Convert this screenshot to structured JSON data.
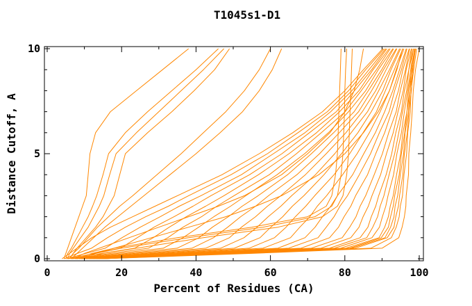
{
  "window": {
    "background": "#ffffff"
  },
  "chart_data": {
    "type": "line",
    "title": "T1045s1-D1",
    "xlabel": "Percent of Residues (CA)",
    "ylabel": "Distance Cutoff, A",
    "xlim": [
      0,
      100
    ],
    "ylim": [
      0,
      10
    ],
    "grid": "off",
    "legend": "none",
    "line_color": "#ff8700",
    "frame_color": "#000000",
    "xticks_major": [
      0,
      20,
      40,
      60,
      80,
      100
    ],
    "xticks_minor": [
      10,
      30,
      50,
      70,
      90
    ],
    "xtick_labels": [
      "0",
      "20",
      "40",
      "60",
      "80",
      "100"
    ],
    "yticks_major": [
      0,
      5,
      10
    ],
    "yticks_minor": [
      1,
      2,
      3,
      4,
      6,
      7,
      8,
      9
    ],
    "ytick_labels": [
      "0",
      "5",
      "10"
    ],
    "y_cutoffs": [
      0,
      0.25,
      0.5,
      1,
      1.5,
      2,
      2.5,
      3,
      4,
      5,
      6,
      7,
      8,
      9,
      10
    ],
    "series": [
      {
        "values": [
          4.5,
          5,
          5.5,
          6.5,
          7.5,
          8.5,
          9.5,
          10.5,
          11,
          11.5,
          13,
          17,
          24,
          31,
          38
        ]
      },
      {
        "values": [
          5,
          5.5,
          6.5,
          8,
          9.5,
          11,
          12.2,
          13.3,
          15,
          16.5,
          21,
          27,
          33.5,
          40,
          46
        ]
      },
      {
        "values": [
          5.5,
          6,
          7,
          9,
          11,
          12.5,
          14,
          15.2,
          16.8,
          18.5,
          24,
          30,
          36,
          42,
          47.5
        ]
      },
      {
        "values": [
          6,
          7,
          8,
          10.5,
          13,
          15,
          16.5,
          18,
          19.5,
          21,
          27,
          33.5,
          39.5,
          45,
          49
        ]
      },
      {
        "values": [
          6,
          7,
          8.5,
          11,
          13.5,
          16.5,
          19.5,
          23,
          29.5,
          36,
          42,
          48,
          53,
          57,
          60
        ]
      },
      {
        "values": [
          6.5,
          8,
          9.5,
          12.5,
          15.5,
          19,
          22.5,
          26,
          33,
          40,
          46.5,
          52.5,
          57,
          60.5,
          63
        ]
      },
      {
        "values": [
          8,
          12,
          18,
          35,
          55,
          70,
          75,
          76.5,
          77.5,
          78,
          78.2,
          78.4,
          78.6,
          78.8,
          79
        ]
      },
      {
        "values": [
          9,
          13,
          20,
          38,
          58,
          72,
          76.5,
          78,
          79,
          79.5,
          79.7,
          79.9,
          80,
          80.2,
          80.5
        ]
      },
      {
        "values": [
          10,
          15,
          24,
          42,
          62,
          74,
          78,
          79.5,
          80.5,
          81,
          81.2,
          81.4,
          81.6,
          81.8,
          82
        ]
      },
      {
        "values": [
          7,
          10,
          14,
          22,
          30,
          38,
          46,
          53,
          63,
          70,
          76,
          80,
          82.5,
          84,
          85
        ]
      },
      {
        "values": [
          9,
          13,
          18,
          28,
          38,
          48,
          56,
          63,
          73,
          80,
          85,
          89,
          92,
          94,
          95.5
        ]
      },
      {
        "values": [
          4,
          6,
          8,
          12,
          17,
          23,
          29,
          35,
          47,
          57,
          66,
          74,
          80,
          85,
          90.2
        ]
      },
      {
        "values": [
          4.6,
          8.1,
          11.9,
          16.2,
          21,
          26.5,
          32.6,
          38,
          49.4,
          59.2,
          67.4,
          75.3,
          81,
          85.6,
          90.6
        ]
      },
      {
        "values": [
          5.2,
          10.4,
          15.6,
          20.1,
          25,
          30.4,
          35.5,
          41.3,
          52.2,
          60.8,
          69.3,
          76.2,
          81.9,
          86.5,
          91
        ]
      },
      {
        "values": [
          5.6,
          12.7,
          19.7,
          24.2,
          28.7,
          34.1,
          39.2,
          44,
          54.4,
          63.1,
          70.5,
          77.7,
          82.6,
          87.2,
          91.3
        ]
      },
      {
        "values": [
          6.3,
          14.7,
          23.5,
          28.5,
          32.8,
          37.4,
          42.6,
          47.5,
          56.8,
          65,
          72.4,
          78.6,
          83.8,
          87.6,
          91.9
        ]
      },
      {
        "values": [
          6.7,
          17.1,
          27.2,
          32.4,
          36.5,
          41.5,
          45.6,
          50.2,
          59.7,
          67,
          73.7,
          80.1,
          84.4,
          88.5,
          92.2
        ]
      },
      {
        "values": [
          7.4,
          19.1,
          31.2,
          36.5,
          40.7,
          44.8,
          49.3,
          53.4,
          61.8,
          69.2,
          75.6,
          81,
          85.6,
          89,
          92.9
        ]
      },
      {
        "values": [
          7.8,
          21.5,
          34.9,
          40.8,
          44.4,
          48.7,
          52.4,
          56.7,
          64.6,
          71,
          77,
          82.5,
          86.3,
          89.9,
          93.1
        ]
      },
      {
        "values": [
          8.5,
          23.5,
          38.9,
          44.7,
          48.5,
          52,
          56,
          59.5,
          67.1,
          73.2,
          78.5,
          83.7,
          87.2,
          90.4,
          93.8
        ]
      },
      {
        "values": [
          9.1,
          25.9,
          42.6,
          49,
          52.2,
          56,
          59.2,
          62.8,
          69.4,
          75,
          80.3,
          84.7,
          88.3,
          91.1,
          94
        ]
      },
      {
        "values": [
          9.4,
          28.1,
          46.6,
          52.9,
          56.4,
          59.4,
          62.8,
          65.7,
          72.1,
          77.3,
          81.7,
          86.1,
          89.1,
          92,
          94.7
        ]
      },
      {
        "values": [
          10.2,
          30.1,
          50.3,
          57.2,
          60.1,
          63.3,
          65.9,
          69,
          74.4,
          79.1,
          83.5,
          87.1,
          90.2,
          92.4,
          95
        ]
      },
      {
        "values": [
          10.5,
          32.5,
          54.3,
          61.1,
          64.2,
          66.7,
          69.5,
          71.9,
          77.1,
          81.3,
          84.9,
          88.5,
          90.9,
          93.3,
          95.6
        ]
      },
      {
        "values": [
          11.3,
          34.5,
          58,
          65.4,
          67.9,
          70.6,
          72.6,
          75.1,
          79.4,
          83.3,
          86.6,
          89.5,
          92,
          93.8,
          95.9
        ]
      },
      {
        "values": [
          11.6,
          36.9,
          62,
          69.3,
          72,
          74,
          76.2,
          78,
          82.1,
          85.1,
          88.2,
          90.7,
          92.9,
          94.7,
          96.5
        ]
      },
      {
        "values": [
          12.2,
          38.5,
          64.9,
          72.8,
          75,
          77.1,
          78.7,
          80.7,
          83.9,
          86.9,
          89.3,
          91.9,
          93.4,
          95.2,
          96.7
        ]
      },
      {
        "values": [
          12.5,
          40.4,
          68.2,
          75.9,
          78.3,
          79.8,
          81.6,
          82.9,
          86.1,
          88.3,
          90.7,
          92.6,
          94.4,
          95.6,
          97.3
        ]
      },
      {
        "values": [
          13.1,
          42,
          71,
          79.3,
          81.3,
          83,
          84.1,
          85.6,
          87.9,
          90.1,
          91.8,
          93.8,
          94.9,
          96.3,
          97.4
        ]
      },
      {
        "values": [
          13.3,
          43.5,
          73.6,
          81.6,
          83.8,
          84.9,
          86.3,
          87.3,
          89.6,
          91.2,
          93,
          94.3,
          95.7,
          96.5,
          97.9
        ]
      },
      {
        "values": [
          13.8,
          44.6,
          75.9,
          84.1,
          86.2,
          87.1,
          88.3,
          89.1,
          91.1,
          92.6,
          93.7,
          95.2,
          96,
          97.2,
          98
        ]
      },
      {
        "values": [
          13.8,
          45.7,
          77.2,
          85.9,
          87.5,
          88.8,
          89.5,
          90.5,
          91.9,
          93.4,
          94.5,
          95.5,
          96.6,
          97.2,
          98.4
        ]
      },
      {
        "values": [
          14.2,
          46.4,
          78.9,
          87.3,
          89.3,
          90.1,
          91,
          91.6,
          93.1,
          94,
          95.2,
          96,
          96.9,
          97.7,
          98.4
        ]
      },
      {
        "values": [
          14.2,
          47.5,
          80.3,
          89.2,
          90.7,
          91.7,
          92.2,
          93,
          93.9,
          95,
          95.6,
          96.7,
          97.1,
          98,
          98.7
        ]
      },
      {
        "values": [
          14.6,
          47.7,
          81.3,
          89.8,
          91.7,
          92.3,
          93,
          93.4,
          94.6,
          95.2,
          96.1,
          96.7,
          97.5,
          97.9,
          98.8
        ]
      },
      {
        "values": [
          14.5,
          48.3,
          81.8,
          90.8,
          92.3,
          93.2,
          93.5,
          94.2,
          94.9,
          95.8,
          96.2,
          97.1,
          97.5,
          98.3,
          98.7
        ]
      },
      {
        "values": [
          14.8,
          48.6,
          82.8,
          91.4,
          93.2,
          93.7,
          94.4,
          94.7,
          95.6,
          96,
          96.8,
          97.2,
          97.9,
          98.2,
          99
        ]
      },
      {
        "values": [
          14.7,
          52,
          87,
          92.5,
          93.8,
          94.6,
          94.9,
          95.5,
          95.9,
          96.6,
          96.9,
          97.6,
          97.8,
          98.5,
          99.3
        ]
      },
      {
        "values": [
          15,
          55,
          90,
          94.5,
          95.4,
          96,
          96.4,
          96.5,
          97.1,
          97.2,
          97.7,
          98.1,
          98.4,
          99,
          100
        ]
      }
    ]
  }
}
